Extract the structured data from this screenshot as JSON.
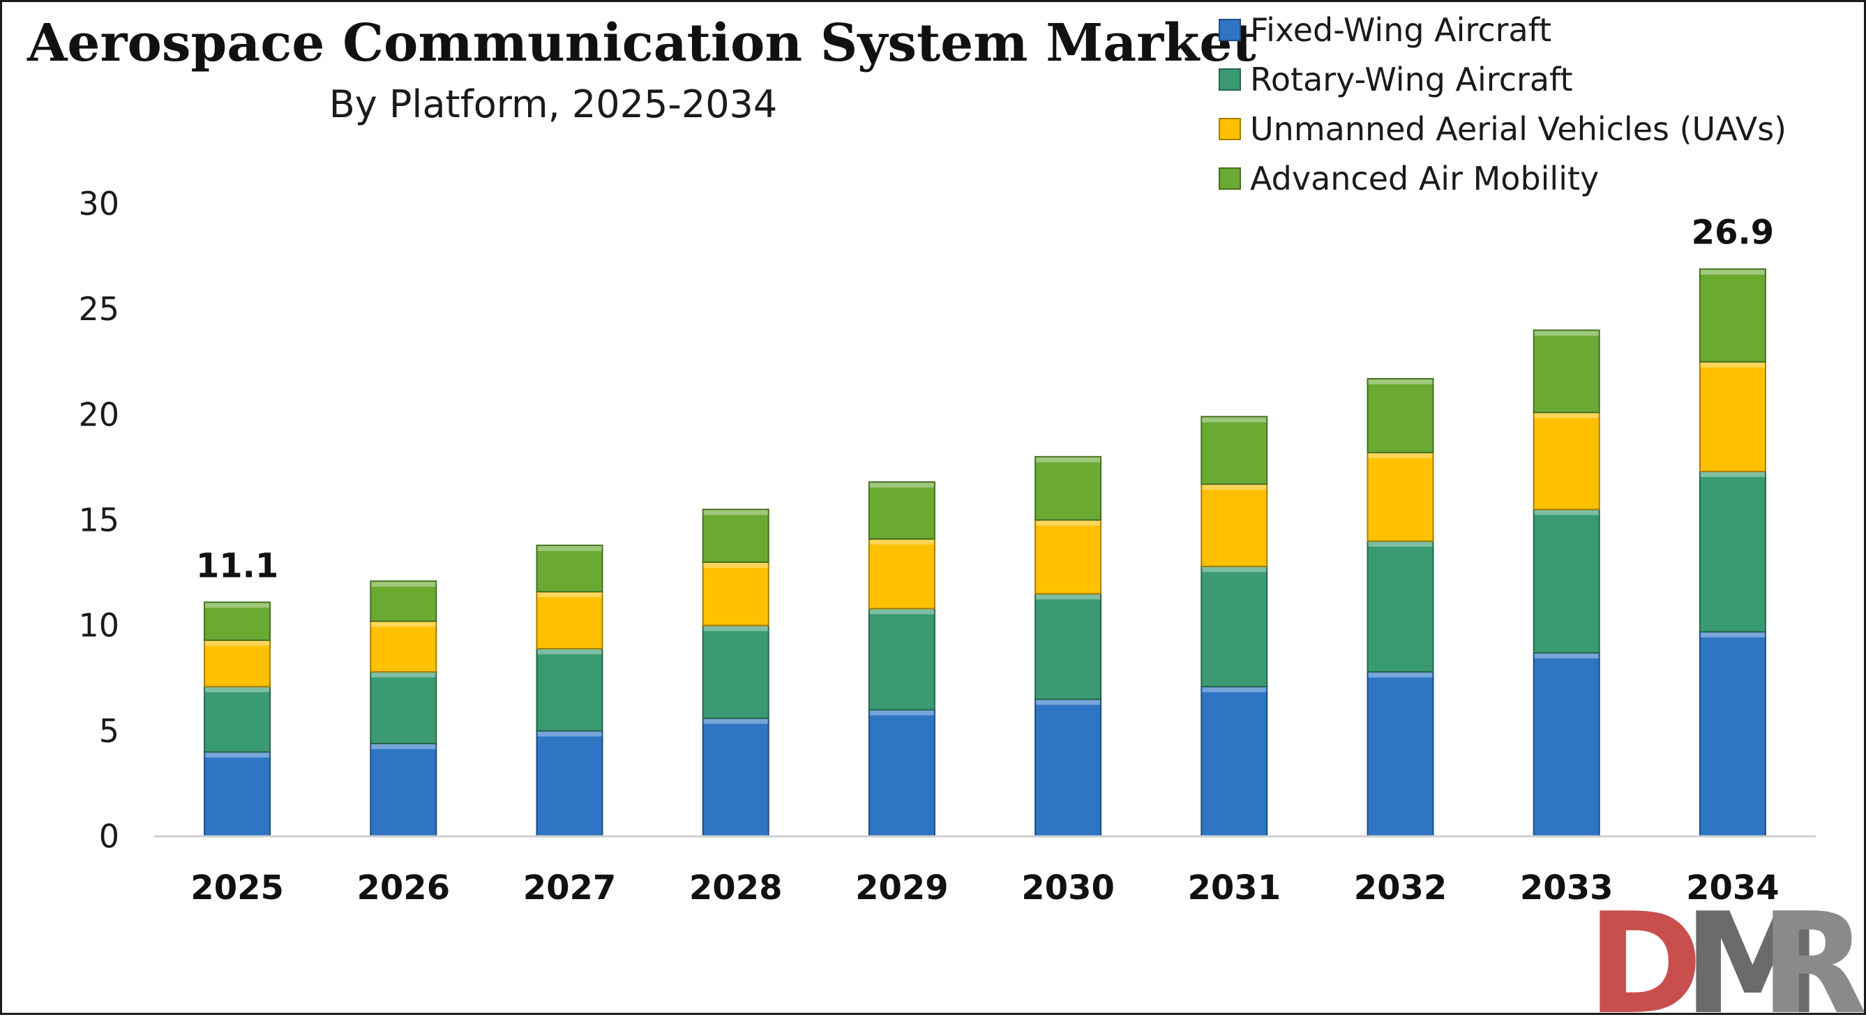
{
  "chart_data": {
    "type": "bar",
    "stacked": true,
    "title": "Aerospace Communication System Market",
    "subtitle": "By Platform, 2025-2034",
    "xlabel": "",
    "ylabel": "",
    "ylim": [
      0,
      30
    ],
    "yticks": [
      0,
      5,
      10,
      15,
      20,
      25,
      30
    ],
    "grid": false,
    "legend_position": "top-right",
    "categories": [
      "2025",
      "2026",
      "2027",
      "2028",
      "2029",
      "2030",
      "2031",
      "2032",
      "2033",
      "2034"
    ],
    "series": [
      {
        "name": "Fixed-Wing Aircraft",
        "color": "#2e75c4",
        "values": [
          4.0,
          4.4,
          5.0,
          5.6,
          6.0,
          6.5,
          7.1,
          7.8,
          8.7,
          9.7
        ]
      },
      {
        "name": "Rotary-Wing Aircraft",
        "color": "#3a9b73",
        "values": [
          3.1,
          3.4,
          3.9,
          4.4,
          4.8,
          5.0,
          5.7,
          6.2,
          6.8,
          7.6
        ]
      },
      {
        "name": "Unmanned Aerial Vehicles (UAVs)",
        "color": "#ffc000",
        "values": [
          2.2,
          2.4,
          2.7,
          3.0,
          3.3,
          3.5,
          3.9,
          4.2,
          4.6,
          5.2
        ]
      },
      {
        "name": "Advanced Air Mobility",
        "color": "#6aaa33",
        "values": [
          1.8,
          1.9,
          2.2,
          2.5,
          2.7,
          3.0,
          3.2,
          3.5,
          3.9,
          4.4
        ]
      }
    ],
    "annotations": [
      {
        "category": "2025",
        "text": "11.1"
      },
      {
        "category": "2034",
        "text": "26.9"
      }
    ]
  },
  "logo": {
    "text": "DMR",
    "colors": [
      "#c94f4f",
      "#6b6b6b",
      "#8a8a8a"
    ]
  }
}
